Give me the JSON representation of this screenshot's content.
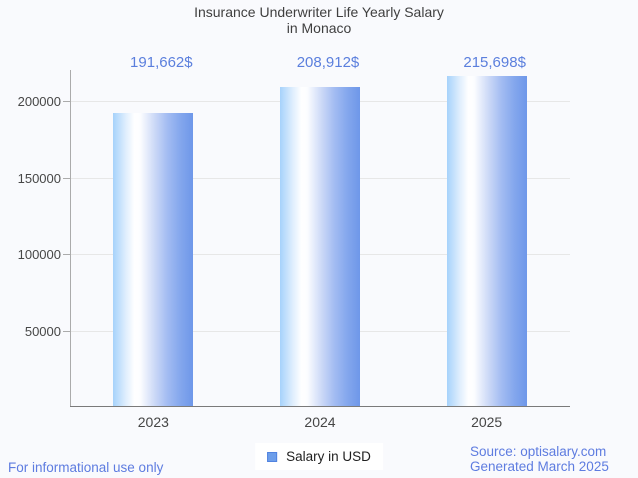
{
  "page": {
    "background_color": "#f9fafd"
  },
  "chart": {
    "title_line1": "Insurance Underwriter Life Yearly Salary",
    "title_line2": "in Monaco",
    "legend_label": "Salary in USD"
  },
  "chart_data": {
    "type": "bar",
    "title": "Insurance Underwriter Life Yearly Salary in Monaco",
    "categories": [
      "2023",
      "2024",
      "2025"
    ],
    "series": [
      {
        "name": "Salary in USD",
        "values": [
          191662,
          208912,
          215698
        ]
      }
    ],
    "value_labels": [
      "191,662$",
      "208,912$",
      "215,698$"
    ],
    "xlabel": "",
    "ylabel": "",
    "ylim": [
      0,
      220500
    ],
    "yticks": [
      50000,
      100000,
      150000,
      200000
    ],
    "ytick_labels": [
      "50000",
      "100000",
      "150000",
      "200000"
    ],
    "grid": "horizontal",
    "legend_position": "bottom-center",
    "colors": {
      "value_label": "#5b7fdd",
      "bar_gradient": [
        "#a6d2fb",
        "#ffffff",
        "#6e97e9"
      ],
      "legend_swatch": "#6d9eea",
      "legend_swatch_border": "#5183e0",
      "footer_text": "#5e7ce0",
      "axis_text": "#474747",
      "title_text": "#3f3f3f"
    }
  },
  "footer": {
    "disclaimer": "For informational use only",
    "source": "Source: optisalary.com",
    "generated": "Generated March 2025"
  }
}
